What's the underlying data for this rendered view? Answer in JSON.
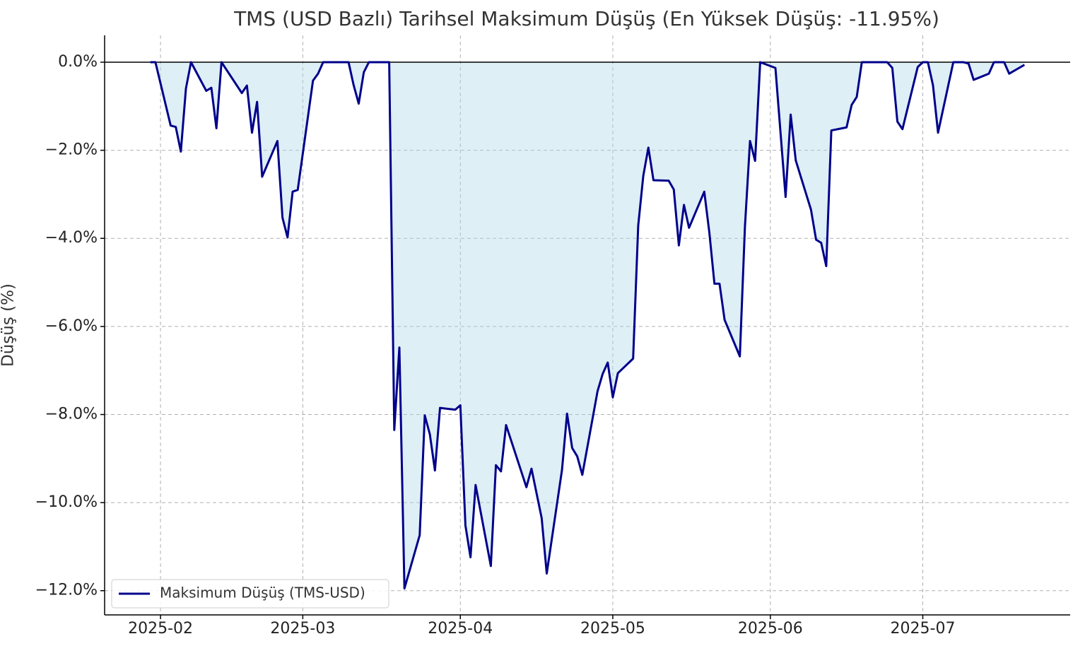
{
  "chart_data": {
    "type": "area",
    "title": "TMS (USD Bazlı) Tarihsel Maksimum Düşüş (En Yüksek Düşüş: -11.95%)",
    "y_label": "Düşüş (%)",
    "x": [
      "2025-01-30",
      "2025-01-31",
      "2025-02-03",
      "2025-02-04",
      "2025-02-05",
      "2025-02-06",
      "2025-02-07",
      "2025-02-10",
      "2025-02-11",
      "2025-02-12",
      "2025-02-13",
      "2025-02-17",
      "2025-02-18",
      "2025-02-19",
      "2025-02-20",
      "2025-02-21",
      "2025-02-24",
      "2025-02-25",
      "2025-02-26",
      "2025-02-27",
      "2025-02-28",
      "2025-03-03",
      "2025-03-04",
      "2025-03-05",
      "2025-03-06",
      "2025-03-07",
      "2025-03-10",
      "2025-03-11",
      "2025-03-12",
      "2025-03-13",
      "2025-03-14",
      "2025-03-17",
      "2025-03-18",
      "2025-03-19",
      "2025-03-20",
      "2025-03-21",
      "2025-03-24",
      "2025-03-25",
      "2025-03-26",
      "2025-03-27",
      "2025-03-28",
      "2025-03-31",
      "2025-04-01",
      "2025-04-02",
      "2025-04-03",
      "2025-04-04",
      "2025-04-07",
      "2025-04-08",
      "2025-04-09",
      "2025-04-10",
      "2025-04-14",
      "2025-04-15",
      "2025-04-17",
      "2025-04-18",
      "2025-04-21",
      "2025-04-22",
      "2025-04-23",
      "2025-04-24",
      "2025-04-25",
      "2025-04-28",
      "2025-04-29",
      "2025-04-30",
      "2025-05-01",
      "2025-05-02",
      "2025-05-05",
      "2025-05-06",
      "2025-05-07",
      "2025-05-08",
      "2025-05-09",
      "2025-05-12",
      "2025-05-13",
      "2025-05-14",
      "2025-05-15",
      "2025-05-16",
      "2025-05-19",
      "2025-05-20",
      "2025-05-21",
      "2025-05-22",
      "2025-05-23",
      "2025-05-26",
      "2025-05-27",
      "2025-05-28",
      "2025-05-29",
      "2025-05-30",
      "2025-06-02",
      "2025-06-04",
      "2025-06-05",
      "2025-06-06",
      "2025-06-09",
      "2025-06-10",
      "2025-06-11",
      "2025-06-12",
      "2025-06-13",
      "2025-06-16",
      "2025-06-17",
      "2025-06-18",
      "2025-06-19",
      "2025-06-24",
      "2025-06-25",
      "2025-06-26",
      "2025-06-27",
      "2025-06-30",
      "2025-07-01",
      "2025-07-02",
      "2025-07-03",
      "2025-07-04",
      "2025-07-07",
      "2025-07-09",
      "2025-07-10",
      "2025-07-11",
      "2025-07-14",
      "2025-07-15",
      "2025-07-17",
      "2025-07-18",
      "2025-07-21"
    ],
    "series": [
      {
        "name": "Maksimum Düşüş (TMS-USD)",
        "color": "#00008b",
        "fill": "#add8e6",
        "values": [
          0,
          0,
          -1.44,
          -1.47,
          -2.03,
          -0.6,
          0,
          -0.65,
          -0.58,
          -1.5,
          0,
          -0.7,
          -0.53,
          -1.6,
          -0.9,
          -2.6,
          -1.79,
          -3.53,
          -3.98,
          -2.94,
          -2.9,
          -0.42,
          -0.26,
          0,
          0,
          0,
          0,
          -0.52,
          -0.94,
          -0.23,
          0,
          0,
          0,
          -8.35,
          -6.48,
          -11.95,
          -10.74,
          -8.02,
          -8.45,
          -9.27,
          -7.85,
          -7.89,
          -7.79,
          -10.52,
          -11.24,
          -9.6,
          -11.44,
          -9.15,
          -9.29,
          -8.24,
          -9.65,
          -9.23,
          -10.35,
          -11.61,
          -9.26,
          -7.98,
          -8.76,
          -8.95,
          -9.37,
          -7.47,
          -7.08,
          -6.82,
          -7.61,
          -7.06,
          -6.73,
          -3.71,
          -2.58,
          -1.94,
          -2.68,
          -2.69,
          -2.89,
          -4.16,
          -3.24,
          -3.76,
          -2.94,
          -3.87,
          -5.03,
          -5.03,
          -5.85,
          -6.68,
          -3.74,
          -1.79,
          -2.24,
          0,
          -0.13,
          -3.06,
          -1.19,
          -2.23,
          -3.35,
          -4.03,
          -4.1,
          -4.63,
          -1.55,
          -1.48,
          -0.97,
          -0.79,
          0,
          0,
          -0.13,
          -1.35,
          -1.52,
          -0.11,
          0,
          0,
          -0.52,
          -1.6,
          0,
          0,
          -0.03,
          -0.4,
          -0.26,
          0,
          0,
          -0.26,
          -0.06
        ]
      }
    ],
    "xlim": [
      "2025-01-21",
      "2025-07-30"
    ],
    "xticks": [
      {
        "value": "2025-02-01",
        "label": "2025-02"
      },
      {
        "value": "2025-03-01",
        "label": "2025-03"
      },
      {
        "value": "2025-04-01",
        "label": "2025-04"
      },
      {
        "value": "2025-05-01",
        "label": "2025-05"
      },
      {
        "value": "2025-06-01",
        "label": "2025-06"
      },
      {
        "value": "2025-07-01",
        "label": "2025-07"
      }
    ],
    "ylim": [
      -12.55,
      0.61
    ],
    "yticks": [
      {
        "value": 0,
        "label": "0.0%"
      },
      {
        "value": -2,
        "label": "−2.0%"
      },
      {
        "value": -4,
        "label": "−4.0%"
      },
      {
        "value": -6,
        "label": "−6.0%"
      },
      {
        "value": -8,
        "label": "−8.0%"
      },
      {
        "value": -10,
        "label": "−10.0%"
      },
      {
        "value": -12,
        "label": "−12.0%"
      }
    ],
    "grid": true,
    "legend": "lower left"
  }
}
